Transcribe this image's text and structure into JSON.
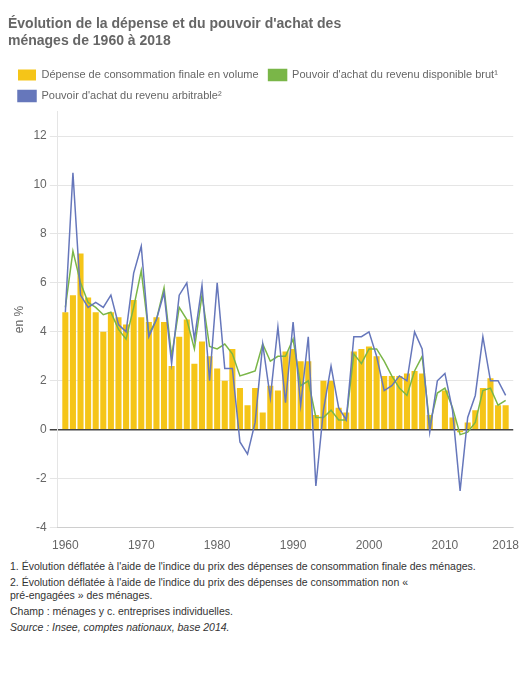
{
  "chart_data": {
    "type": "bar",
    "title": "Évolution de la dépense et du pouvoir d'achat des\nménages de 1960 à 2018",
    "ylabel": "en %",
    "x": [
      1960,
      1961,
      1962,
      1963,
      1964,
      1965,
      1966,
      1967,
      1968,
      1969,
      1970,
      1971,
      1972,
      1973,
      1974,
      1975,
      1976,
      1977,
      1978,
      1979,
      1980,
      1981,
      1982,
      1983,
      1984,
      1985,
      1986,
      1987,
      1988,
      1989,
      1990,
      1991,
      1992,
      1993,
      1994,
      1995,
      1996,
      1997,
      1998,
      1999,
      2000,
      2001,
      2002,
      2003,
      2004,
      2005,
      2006,
      2007,
      2008,
      2009,
      2010,
      2011,
      2012,
      2013,
      2014,
      2015,
      2016,
      2017,
      2018
    ],
    "series": [
      {
        "name": "Dépense de consommation finale en volume",
        "type": "bar",
        "color": "#f5c518",
        "values": [
          4.8,
          5.5,
          7.2,
          5.4,
          4.8,
          4.0,
          4.8,
          4.6,
          4.3,
          5.3,
          4.6,
          4.4,
          4.6,
          4.4,
          2.6,
          3.8,
          4.5,
          2.7,
          3.6,
          3.0,
          2.5,
          2.0,
          3.3,
          1.7,
          1.0,
          1.7,
          0.7,
          1.8,
          1.6,
          3.2,
          3.3,
          2.8,
          2.8,
          0.6,
          2.0,
          2.0,
          0.9,
          0.7,
          3.2,
          3.3,
          3.4,
          3.0,
          2.2,
          2.2,
          2.2,
          2.3,
          2.4,
          2.3,
          0.6,
          0.0,
          1.6,
          0.5,
          -0.1,
          0.3,
          0.8,
          1.7,
          2.1,
          1.0,
          1.0
        ]
      },
      {
        "name": "Pouvoir d'achat du revenu disponible brut¹",
        "type": "line",
        "color": "#7ab648",
        "values": [
          5.0,
          7.3,
          6.0,
          5.2,
          5.0,
          4.7,
          4.8,
          4.1,
          3.7,
          5.0,
          6.5,
          3.9,
          4.5,
          5.8,
          3.0,
          5.0,
          4.5,
          3.3,
          5.5,
          3.4,
          3.3,
          3.5,
          3.1,
          2.2,
          2.3,
          2.4,
          3.5,
          2.8,
          3.0,
          3.0,
          3.7,
          1.8,
          2.0,
          0.5,
          0.5,
          0.8,
          0.4,
          0.4,
          3.1,
          2.7,
          3.3,
          3.3,
          2.8,
          2.2,
          1.7,
          1.4,
          2.4,
          3.0,
          0.2,
          1.5,
          1.7,
          0.9,
          -0.2,
          -0.1,
          0.3,
          1.6,
          1.7,
          1.0,
          1.2
        ]
      },
      {
        "name": "Pouvoir d'achat du revenu arbitrable²",
        "type": "line",
        "color": "#6677bb",
        "values": [
          4.8,
          10.5,
          5.5,
          5.0,
          5.2,
          5.0,
          5.5,
          4.3,
          4.0,
          6.4,
          7.5,
          3.8,
          4.5,
          5.6,
          2.7,
          5.5,
          6.0,
          3.7,
          5.9,
          2.0,
          6.0,
          2.5,
          2.5,
          -0.5,
          -1.0,
          0.3,
          3.5,
          1.3,
          4.2,
          1.1,
          4.4,
          1.0,
          3.8,
          -2.3,
          0.8,
          2.6,
          0.9,
          0.4,
          3.8,
          3.8,
          4.0,
          3.0,
          1.6,
          1.8,
          2.2,
          2.0,
          4.0,
          3.3,
          -0.1,
          2.0,
          2.3,
          0.8,
          -2.5,
          0.5,
          1.4,
          3.8,
          2.0,
          2.0,
          1.4
        ]
      }
    ],
    "xlim": [
      1959,
      2019
    ],
    "xticks": [
      1960,
      1970,
      1980,
      1990,
      2000,
      2010,
      2018
    ],
    "ylim": [
      -4,
      13
    ],
    "yticks": [
      -4,
      -2,
      0,
      2,
      4,
      6,
      8,
      10,
      12
    ],
    "grid": "y",
    "legend": "top",
    "annotations": [
      "1. Évolution déflatée à l'aide de l'indice du prix des dépenses de consommation finale des ménages.",
      "2. Évolution déflatée à l'aide de l'indice du prix des dépenses de consommation non «\npré-engagées » des ménages.",
      "Champ : ménages y c. entreprises individuelles.",
      "Source : Insee, comptes nationaux, base 2014."
    ]
  }
}
